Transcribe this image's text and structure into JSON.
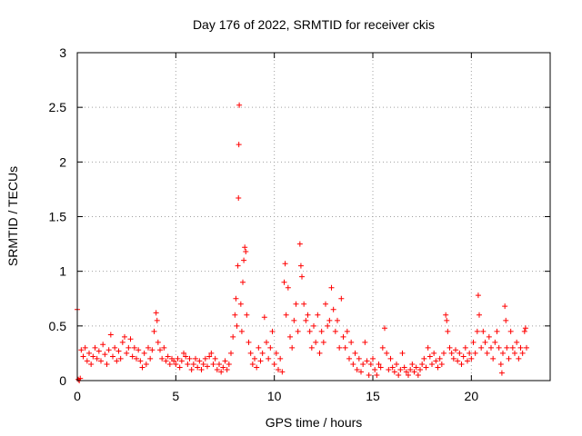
{
  "chart_data": {
    "type": "scatter",
    "title": "Day 176 of 2022, SRMTID for receiver ckis",
    "xlabel": "GPS time / hours",
    "ylabel": "SRMTID / TECUs",
    "xlim": [
      0,
      24
    ],
    "ylim": [
      0,
      3
    ],
    "grid": true,
    "marker": "+",
    "color": "#ff0000",
    "x_ticks": [
      {
        "value": 0,
        "label": "0"
      },
      {
        "value": 5,
        "label": "5"
      },
      {
        "value": 10,
        "label": "10"
      },
      {
        "value": 15,
        "label": "15"
      },
      {
        "value": 20,
        "label": "20"
      }
    ],
    "y_ticks": [
      {
        "value": 0,
        "label": "0"
      },
      {
        "value": 0.5,
        "label": "0.5"
      },
      {
        "value": 1,
        "label": "1"
      },
      {
        "value": 1.5,
        "label": "1.5"
      },
      {
        "value": 2,
        "label": "2"
      },
      {
        "value": 2.5,
        "label": "2.5"
      },
      {
        "value": 3,
        "label": "3"
      }
    ],
    "series": [
      {
        "name": "SRMTID",
        "points": [
          [
            0.0,
            0.65
          ],
          [
            0.05,
            0.01
          ],
          [
            0.1,
            0.0
          ],
          [
            0.15,
            0.02
          ],
          [
            0.2,
            0.28
          ],
          [
            0.3,
            0.22
          ],
          [
            0.4,
            0.3
          ],
          [
            0.5,
            0.18
          ],
          [
            0.6,
            0.25
          ],
          [
            0.7,
            0.15
          ],
          [
            0.8,
            0.22
          ],
          [
            0.9,
            0.3
          ],
          [
            1.0,
            0.2
          ],
          [
            1.1,
            0.27
          ],
          [
            1.2,
            0.18
          ],
          [
            1.3,
            0.33
          ],
          [
            1.4,
            0.24
          ],
          [
            1.5,
            0.15
          ],
          [
            1.6,
            0.28
          ],
          [
            1.7,
            0.42
          ],
          [
            1.8,
            0.22
          ],
          [
            1.9,
            0.3
          ],
          [
            2.0,
            0.18
          ],
          [
            2.1,
            0.27
          ],
          [
            2.2,
            0.2
          ],
          [
            2.3,
            0.35
          ],
          [
            2.4,
            0.4
          ],
          [
            2.5,
            0.25
          ],
          [
            2.6,
            0.3
          ],
          [
            2.7,
            0.38
          ],
          [
            2.8,
            0.22
          ],
          [
            2.9,
            0.3
          ],
          [
            3.0,
            0.2
          ],
          [
            3.1,
            0.28
          ],
          [
            3.2,
            0.18
          ],
          [
            3.3,
            0.12
          ],
          [
            3.4,
            0.25
          ],
          [
            3.5,
            0.15
          ],
          [
            3.6,
            0.3
          ],
          [
            3.7,
            0.2
          ],
          [
            3.8,
            0.28
          ],
          [
            3.9,
            0.45
          ],
          [
            4.0,
            0.62
          ],
          [
            4.05,
            0.55
          ],
          [
            4.1,
            0.35
          ],
          [
            4.2,
            0.28
          ],
          [
            4.3,
            0.2
          ],
          [
            4.4,
            0.3
          ],
          [
            4.5,
            0.18
          ],
          [
            4.6,
            0.22
          ],
          [
            4.7,
            0.15
          ],
          [
            4.8,
            0.2
          ],
          [
            4.9,
            0.18
          ],
          [
            5.0,
            0.15
          ],
          [
            5.1,
            0.2
          ],
          [
            5.2,
            0.12
          ],
          [
            5.3,
            0.18
          ],
          [
            5.4,
            0.25
          ],
          [
            5.5,
            0.22
          ],
          [
            5.6,
            0.15
          ],
          [
            5.7,
            0.2
          ],
          [
            5.8,
            0.1
          ],
          [
            5.9,
            0.15
          ],
          [
            6.0,
            0.2
          ],
          [
            6.1,
            0.12
          ],
          [
            6.2,
            0.18
          ],
          [
            6.3,
            0.1
          ],
          [
            6.4,
            0.15
          ],
          [
            6.5,
            0.2
          ],
          [
            6.6,
            0.13
          ],
          [
            6.7,
            0.22
          ],
          [
            6.8,
            0.25
          ],
          [
            6.9,
            0.15
          ],
          [
            7.0,
            0.2
          ],
          [
            7.1,
            0.1
          ],
          [
            7.2,
            0.15
          ],
          [
            7.3,
            0.08
          ],
          [
            7.4,
            0.12
          ],
          [
            7.5,
            0.18
          ],
          [
            7.6,
            0.1
          ],
          [
            7.7,
            0.15
          ],
          [
            7.8,
            0.25
          ],
          [
            7.9,
            0.4
          ],
          [
            8.0,
            0.6
          ],
          [
            8.05,
            0.75
          ],
          [
            8.1,
            0.5
          ],
          [
            8.15,
            1.05
          ],
          [
            8.18,
            1.67
          ],
          [
            8.2,
            2.16
          ],
          [
            8.22,
            2.52
          ],
          [
            8.3,
            0.7
          ],
          [
            8.35,
            0.45
          ],
          [
            8.4,
            0.9
          ],
          [
            8.45,
            1.1
          ],
          [
            8.5,
            1.22
          ],
          [
            8.55,
            1.18
          ],
          [
            8.6,
            0.6
          ],
          [
            8.7,
            0.35
          ],
          [
            8.8,
            0.25
          ],
          [
            8.9,
            0.15
          ],
          [
            9.0,
            0.2
          ],
          [
            9.1,
            0.12
          ],
          [
            9.2,
            0.3
          ],
          [
            9.3,
            0.18
          ],
          [
            9.4,
            0.25
          ],
          [
            9.5,
            0.58
          ],
          [
            9.6,
            0.35
          ],
          [
            9.7,
            0.2
          ],
          [
            9.8,
            0.3
          ],
          [
            9.9,
            0.45
          ],
          [
            10.0,
            0.15
          ],
          [
            10.1,
            0.25
          ],
          [
            10.2,
            0.1
          ],
          [
            10.3,
            0.2
          ],
          [
            10.4,
            0.08
          ],
          [
            10.5,
            0.9
          ],
          [
            10.55,
            1.07
          ],
          [
            10.6,
            0.6
          ],
          [
            10.7,
            0.85
          ],
          [
            10.8,
            0.4
          ],
          [
            10.9,
            0.3
          ],
          [
            11.0,
            0.55
          ],
          [
            11.1,
            0.7
          ],
          [
            11.2,
            0.45
          ],
          [
            11.3,
            1.25
          ],
          [
            11.35,
            1.05
          ],
          [
            11.4,
            0.95
          ],
          [
            11.5,
            0.7
          ],
          [
            11.6,
            0.55
          ],
          [
            11.7,
            0.6
          ],
          [
            11.8,
            0.45
          ],
          [
            11.9,
            0.3
          ],
          [
            12.0,
            0.5
          ],
          [
            12.1,
            0.35
          ],
          [
            12.2,
            0.6
          ],
          [
            12.3,
            0.25
          ],
          [
            12.4,
            0.45
          ],
          [
            12.5,
            0.35
          ],
          [
            12.6,
            0.7
          ],
          [
            12.7,
            0.5
          ],
          [
            12.8,
            0.55
          ],
          [
            12.9,
            0.85
          ],
          [
            13.0,
            0.65
          ],
          [
            13.1,
            0.45
          ],
          [
            13.2,
            0.55
          ],
          [
            13.3,
            0.3
          ],
          [
            13.4,
            0.75
          ],
          [
            13.5,
            0.4
          ],
          [
            13.6,
            0.3
          ],
          [
            13.7,
            0.45
          ],
          [
            13.8,
            0.2
          ],
          [
            13.9,
            0.35
          ],
          [
            14.0,
            0.15
          ],
          [
            14.1,
            0.25
          ],
          [
            14.2,
            0.1
          ],
          [
            14.3,
            0.2
          ],
          [
            14.4,
            0.08
          ],
          [
            14.5,
            0.15
          ],
          [
            14.6,
            0.35
          ],
          [
            14.7,
            0.18
          ],
          [
            14.8,
            0.05
          ],
          [
            14.9,
            0.15
          ],
          [
            15.0,
            0.2
          ],
          [
            15.1,
            0.1
          ],
          [
            15.2,
            0.05
          ],
          [
            15.3,
            0.15
          ],
          [
            15.4,
            0.12
          ],
          [
            15.5,
            0.3
          ],
          [
            15.6,
            0.48
          ],
          [
            15.7,
            0.25
          ],
          [
            15.8,
            0.1
          ],
          [
            15.9,
            0.2
          ],
          [
            16.0,
            0.12
          ],
          [
            16.1,
            0.08
          ],
          [
            16.2,
            0.15
          ],
          [
            16.3,
            0.05
          ],
          [
            16.4,
            0.1
          ],
          [
            16.5,
            0.25
          ],
          [
            16.6,
            0.12
          ],
          [
            16.7,
            0.08
          ],
          [
            16.8,
            0.05
          ],
          [
            16.9,
            0.1
          ],
          [
            17.0,
            0.15
          ],
          [
            17.1,
            0.08
          ],
          [
            17.2,
            0.12
          ],
          [
            17.3,
            0.05
          ],
          [
            17.4,
            0.1
          ],
          [
            17.5,
            0.15
          ],
          [
            17.6,
            0.2
          ],
          [
            17.7,
            0.12
          ],
          [
            17.8,
            0.3
          ],
          [
            17.9,
            0.22
          ],
          [
            18.0,
            0.15
          ],
          [
            18.1,
            0.25
          ],
          [
            18.2,
            0.18
          ],
          [
            18.3,
            0.12
          ],
          [
            18.4,
            0.2
          ],
          [
            18.5,
            0.15
          ],
          [
            18.6,
            0.25
          ],
          [
            18.7,
            0.6
          ],
          [
            18.75,
            0.55
          ],
          [
            18.8,
            0.45
          ],
          [
            18.9,
            0.3
          ],
          [
            19.0,
            0.25
          ],
          [
            19.1,
            0.2
          ],
          [
            19.2,
            0.28
          ],
          [
            19.3,
            0.18
          ],
          [
            19.4,
            0.25
          ],
          [
            19.5,
            0.15
          ],
          [
            19.6,
            0.22
          ],
          [
            19.7,
            0.3
          ],
          [
            19.8,
            0.18
          ],
          [
            19.9,
            0.25
          ],
          [
            20.0,
            0.2
          ],
          [
            20.1,
            0.35
          ],
          [
            20.2,
            0.25
          ],
          [
            20.3,
            0.45
          ],
          [
            20.35,
            0.78
          ],
          [
            20.4,
            0.6
          ],
          [
            20.5,
            0.3
          ],
          [
            20.6,
            0.45
          ],
          [
            20.7,
            0.35
          ],
          [
            20.8,
            0.25
          ],
          [
            20.9,
            0.4
          ],
          [
            21.0,
            0.3
          ],
          [
            21.1,
            0.2
          ],
          [
            21.2,
            0.35
          ],
          [
            21.3,
            0.45
          ],
          [
            21.4,
            0.3
          ],
          [
            21.5,
            0.15
          ],
          [
            21.55,
            0.07
          ],
          [
            21.6,
            0.25
          ],
          [
            21.7,
            0.68
          ],
          [
            21.75,
            0.55
          ],
          [
            21.8,
            0.3
          ],
          [
            21.9,
            0.2
          ],
          [
            22.0,
            0.45
          ],
          [
            22.1,
            0.3
          ],
          [
            22.2,
            0.25
          ],
          [
            22.3,
            0.35
          ],
          [
            22.4,
            0.2
          ],
          [
            22.5,
            0.3
          ],
          [
            22.6,
            0.25
          ],
          [
            22.7,
            0.45
          ],
          [
            22.75,
            0.48
          ],
          [
            22.8,
            0.3
          ]
        ]
      }
    ]
  }
}
